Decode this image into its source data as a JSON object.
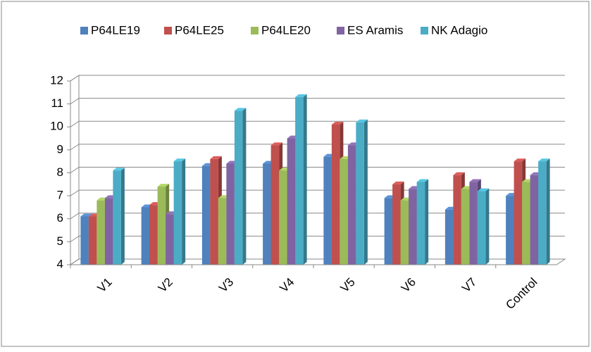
{
  "chart_data": {
    "type": "bar3d",
    "categories": [
      "V1",
      "V2",
      "V3",
      "V4",
      "V5",
      "V6",
      "V7",
      "Control"
    ],
    "series": [
      {
        "name": "P64LE19",
        "color": "#4f81bd",
        "values": [
          6.1,
          6.5,
          8.3,
          8.4,
          8.7,
          6.9,
          6.4,
          7.0
        ]
      },
      {
        "name": "P64LE25",
        "color": "#c0504d",
        "values": [
          6.1,
          6.6,
          8.6,
          9.2,
          10.1,
          7.5,
          7.9,
          8.5
        ]
      },
      {
        "name": "P64LE20",
        "color": "#9bbb59",
        "values": [
          6.8,
          7.4,
          6.9,
          8.1,
          8.6,
          6.8,
          7.3,
          7.6
        ]
      },
      {
        "name": "ES Aramis",
        "color": "#8064a2",
        "values": [
          6.9,
          6.2,
          8.4,
          9.5,
          9.2,
          7.3,
          7.6,
          7.9
        ]
      },
      {
        "name": "NK Adagio",
        "color": "#4bacc6",
        "values": [
          8.1,
          8.5,
          10.7,
          11.3,
          10.2,
          7.6,
          7.2,
          8.5
        ]
      }
    ],
    "ylim": [
      4,
      12
    ],
    "yticks": [
      4,
      5,
      6,
      7,
      8,
      9,
      10,
      11,
      12
    ],
    "grid": true,
    "legend": "top"
  }
}
